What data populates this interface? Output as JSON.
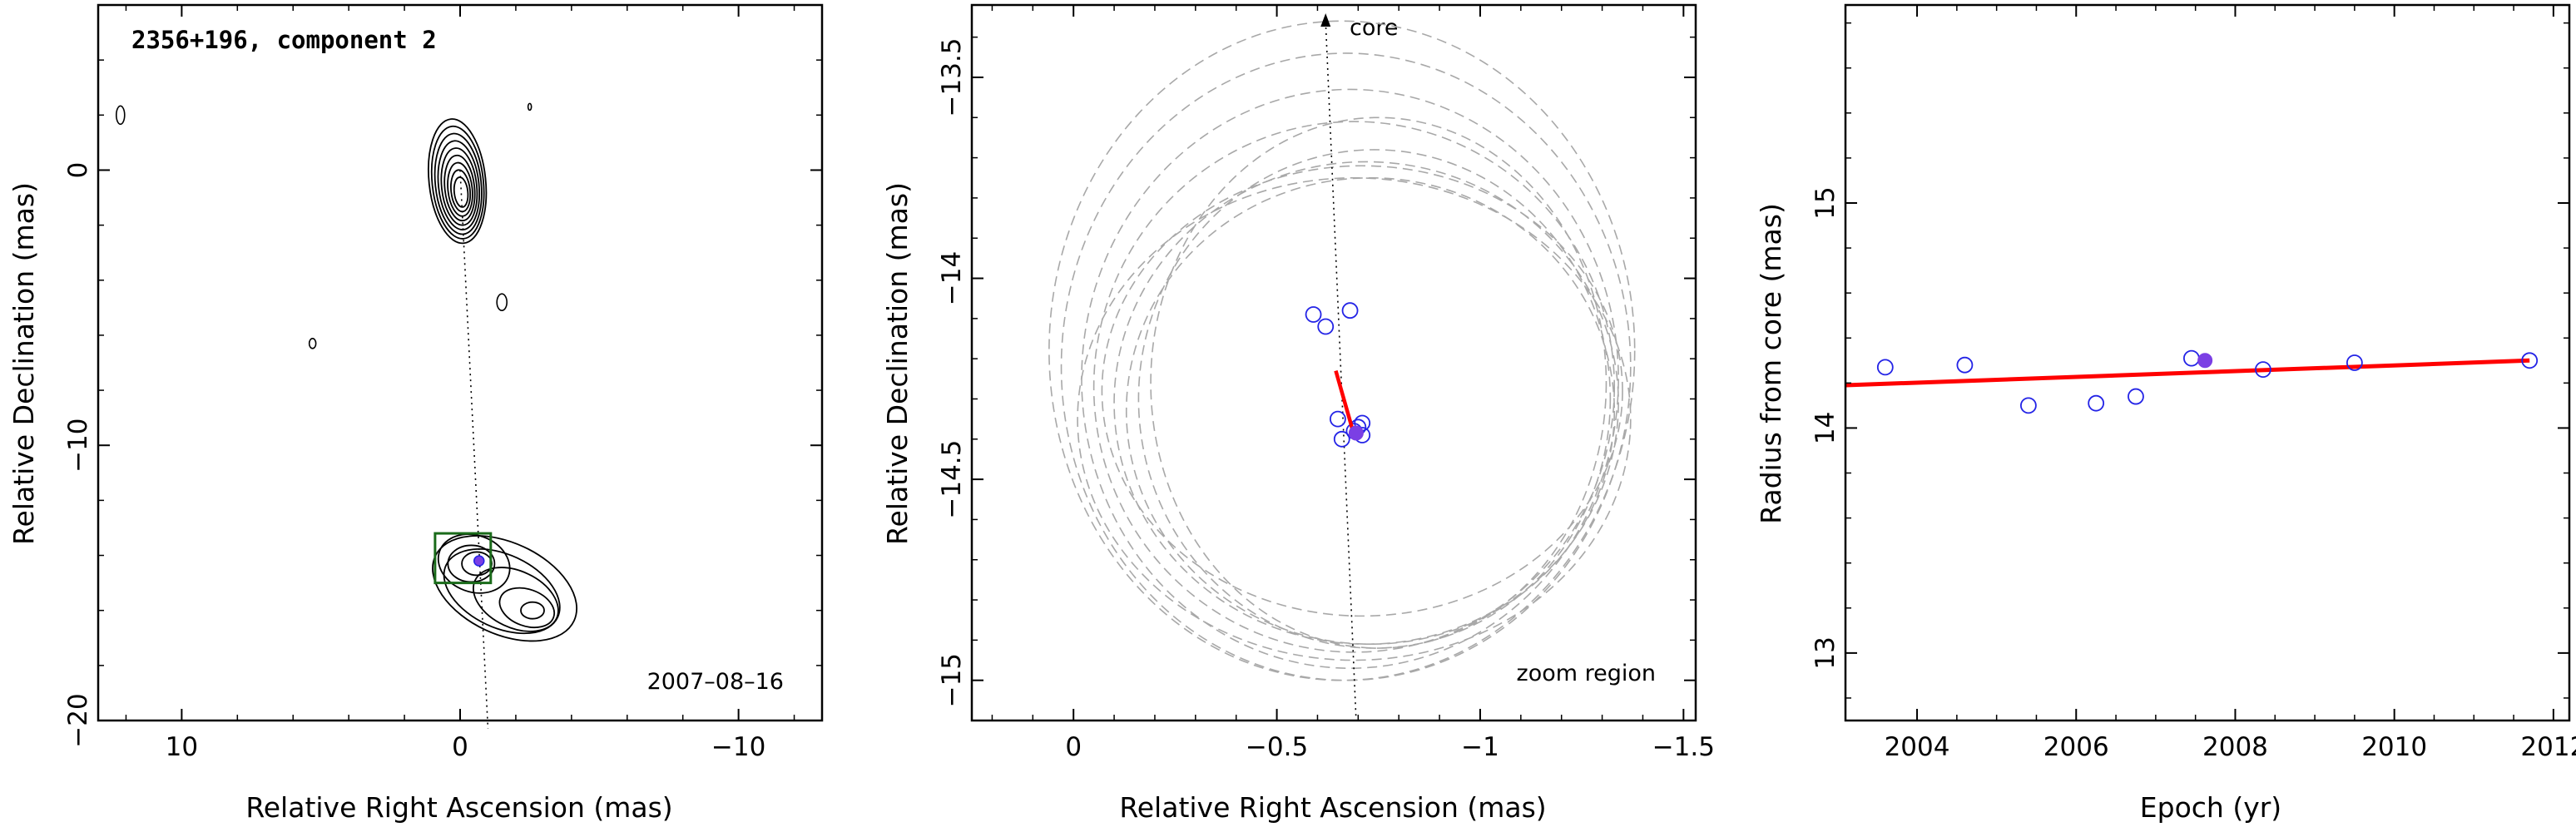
{
  "chart_data": [
    {
      "type": "scatter",
      "title": "2356+196, component 2",
      "xlabel": "Relative Right Ascension (mas)",
      "ylabel": "Relative Declination (mas)",
      "xlim": [
        13,
        -13
      ],
      "ylim": [
        -20,
        6
      ],
      "xticks": [
        10,
        0,
        -10
      ],
      "xtick_labels": [
        "10",
        "0",
        "−10"
      ],
      "yticks": [
        0,
        -10,
        -20
      ],
      "ytick_labels": [
        "0",
        "−10",
        "−20"
      ],
      "epoch_label": "2007–08–16",
      "component": {
        "x": -0.68,
        "y": -14.2
      },
      "jet_axis": {
        "from": [
          0,
          0
        ],
        "to": [
          -1,
          -20
        ]
      },
      "zoom_box": {
        "x": [
          0.9,
          -1.1
        ],
        "y": [
          -13.2,
          -15.0
        ]
      },
      "core_contour_levels": 9,
      "contour_color": "#000000",
      "box_color": "#1a6b1a",
      "marker_color": "#7b3fe4"
    },
    {
      "type": "scatter",
      "xlabel": "Relative Right Ascension (mas)",
      "ylabel": "Relative Declination (mas)",
      "xlim": [
        0.25,
        -1.53
      ],
      "ylim": [
        -15.1,
        -13.32
      ],
      "xticks": [
        0,
        -0.5,
        -1,
        -1.5
      ],
      "xtick_labels": [
        "0",
        "−0.5",
        "−1",
        "−1.5"
      ],
      "yticks": [
        -13.5,
        -14,
        -14.5,
        -15
      ],
      "ytick_labels": [
        "−13.5",
        "−14",
        "−14.5",
        "−15"
      ],
      "core_label": "core",
      "zoom_label": "zoom region",
      "points": [
        {
          "x": -0.59,
          "y": -14.09
        },
        {
          "x": -0.62,
          "y": -14.12
        },
        {
          "x": -0.68,
          "y": -14.08
        },
        {
          "x": -0.65,
          "y": -14.35
        },
        {
          "x": -0.66,
          "y": -14.4
        },
        {
          "x": -0.69,
          "y": -14.38
        },
        {
          "x": -0.7,
          "y": -14.37
        },
        {
          "x": -0.71,
          "y": -14.36
        },
        {
          "x": -0.71,
          "y": -14.39
        }
      ],
      "highlight": {
        "x": -0.695,
        "y": -14.385
      },
      "velocity_vector": {
        "from": [
          -0.645,
          -14.23
        ],
        "to": [
          -0.69,
          -14.39
        ]
      },
      "beam_ellipses": [
        {
          "cx": -0.66,
          "cy": -14.18,
          "rx": 0.72,
          "ry": 0.82
        },
        {
          "cx": -0.67,
          "cy": -14.22,
          "rx": 0.7,
          "ry": 0.78
        },
        {
          "cx": -0.68,
          "cy": -14.25,
          "rx": 0.66,
          "ry": 0.72
        },
        {
          "cx": -0.69,
          "cy": -14.27,
          "rx": 0.64,
          "ry": 0.66
        },
        {
          "cx": -0.72,
          "cy": -14.31,
          "rx": 0.62,
          "ry": 0.6
        },
        {
          "cx": -0.73,
          "cy": -14.33,
          "rx": 0.6,
          "ry": 0.58
        },
        {
          "cx": -0.74,
          "cy": -14.3,
          "rx": 0.58,
          "ry": 0.62
        },
        {
          "cx": -0.71,
          "cy": -14.28,
          "rx": 0.64,
          "ry": 0.56
        },
        {
          "cx": -0.69,
          "cy": -14.35,
          "rx": 0.68,
          "ry": 0.6
        },
        {
          "cx": -0.75,
          "cy": -14.26,
          "rx": 0.56,
          "ry": 0.66
        }
      ],
      "point_color": "#2323e6",
      "highlight_color": "#7b3fe4",
      "vector_color": "#ff0000",
      "ellipse_color": "#a8a8a8"
    },
    {
      "type": "scatter",
      "xlabel": "Epoch (yr)",
      "ylabel": "Radius from core (mas)",
      "xlim": [
        2003.1,
        2012.2
      ],
      "ylim": [
        12.7,
        15.88
      ],
      "xticks": [
        2004,
        2006,
        2008,
        2010,
        2012
      ],
      "xtick_labels": [
        "2004",
        "2006",
        "2008",
        "2010",
        "2012"
      ],
      "yticks": [
        13,
        14,
        15
      ],
      "ytick_labels": [
        "13",
        "14",
        "15"
      ],
      "points": [
        {
          "x": 2003.6,
          "y": 14.27
        },
        {
          "x": 2004.6,
          "y": 14.28
        },
        {
          "x": 2005.4,
          "y": 14.1
        },
        {
          "x": 2006.25,
          "y": 14.11
        },
        {
          "x": 2006.75,
          "y": 14.14
        },
        {
          "x": 2007.45,
          "y": 14.31
        },
        {
          "x": 2008.35,
          "y": 14.26
        },
        {
          "x": 2009.5,
          "y": 14.29
        },
        {
          "x": 2011.7,
          "y": 14.3
        }
      ],
      "highlight": {
        "x": 2007.62,
        "y": 14.3
      },
      "fit_line": {
        "x": [
          2003.1,
          2011.7
        ],
        "y": [
          14.19,
          14.3
        ]
      },
      "point_color": "#2323e6",
      "highlight_color": "#7b3fe4",
      "fit_color": "#ff0000"
    }
  ]
}
